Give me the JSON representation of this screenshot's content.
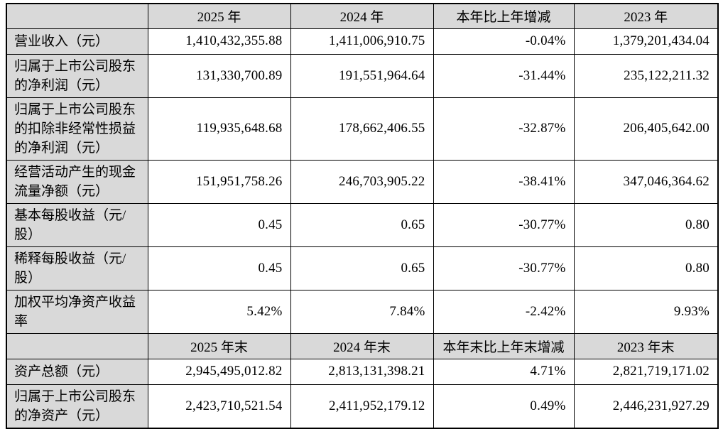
{
  "colors": {
    "header_bg": "#d9d9d9",
    "label_bg": "#d9d9d9",
    "cell_bg": "#ffffff",
    "border": "#000000"
  },
  "table": {
    "section1": {
      "header": [
        "",
        "2025 年",
        "2024 年",
        "本年比上年增减",
        "2023 年"
      ],
      "rows": [
        {
          "label": "营业收入（元）",
          "values": [
            "1,410,432,355.88",
            "1,411,006,910.75",
            "-0.04%",
            "1,379,201,434.04"
          ]
        },
        {
          "label": "归属于上市公司股东的净利润（元）",
          "values": [
            "131,330,700.89",
            "191,551,964.64",
            "-31.44%",
            "235,122,211.32"
          ]
        },
        {
          "label": "归属于上市公司股东的扣除非经常性损益的净利润（元）",
          "values": [
            "119,935,648.68",
            "178,662,406.55",
            "-32.87%",
            "206,405,642.00"
          ]
        },
        {
          "label": "经营活动产生的现金流量净额（元）",
          "values": [
            "151,951,758.26",
            "246,703,905.22",
            "-38.41%",
            "347,046,364.62"
          ]
        },
        {
          "label": "基本每股收益（元/股）",
          "values": [
            "0.45",
            "0.65",
            "-30.77%",
            "0.80"
          ]
        },
        {
          "label": "稀释每股收益（元/股）",
          "values": [
            "0.45",
            "0.65",
            "-30.77%",
            "0.80"
          ]
        },
        {
          "label": "加权平均净资产收益率",
          "values": [
            "5.42%",
            "7.84%",
            "-2.42%",
            "9.93%"
          ]
        }
      ]
    },
    "section2": {
      "header": [
        "",
        "2025 年末",
        "2024 年末",
        "本年末比上年末增减",
        "2023 年末"
      ],
      "rows": [
        {
          "label": "资产总额（元）",
          "values": [
            "2,945,495,012.82",
            "2,813,131,398.21",
            "4.71%",
            "2,821,719,171.02"
          ]
        },
        {
          "label": "归属于上市公司股东的净资产（元）",
          "values": [
            "2,423,710,521.54",
            "2,411,952,179.12",
            "0.49%",
            "2,446,231,927.29"
          ]
        }
      ]
    }
  }
}
